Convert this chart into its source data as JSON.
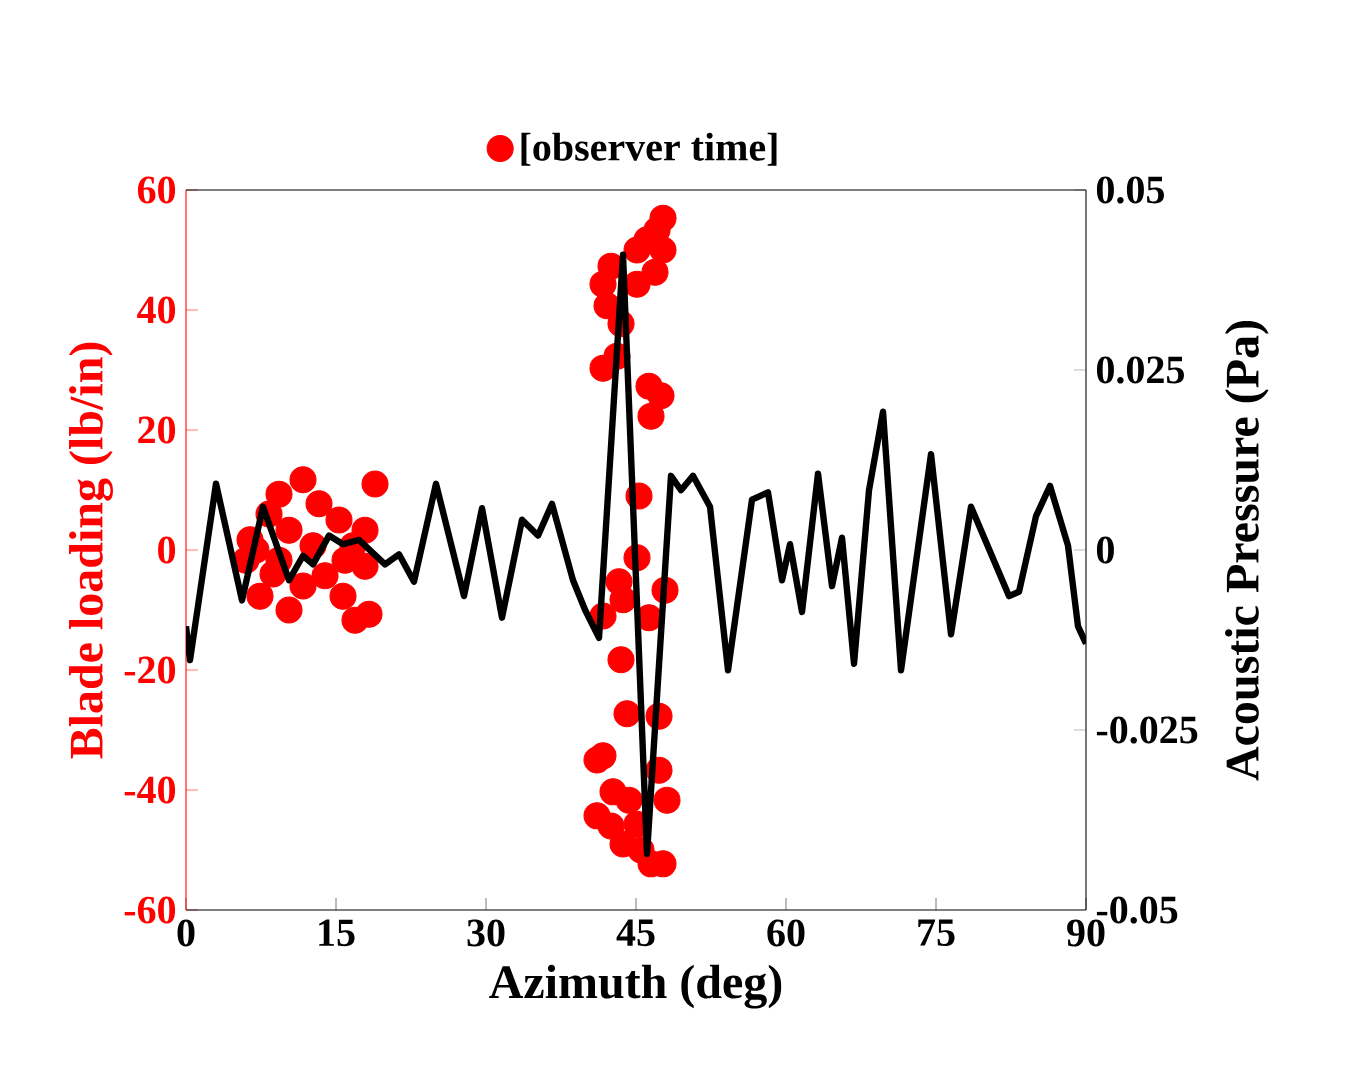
{
  "chart_data": {
    "type": "scatter",
    "xlabel": "Azimuth (deg)",
    "ylabel": "Blade loading (lb/in)",
    "y2label": "Acoustic Pressure (Pa)",
    "xlim": [
      0,
      90
    ],
    "xticks": [
      0,
      15,
      30,
      45,
      60,
      75,
      90
    ],
    "ylim": [
      -60,
      60
    ],
    "yticks": [
      -60,
      -40,
      -20,
      0,
      20,
      40,
      60
    ],
    "y2lim": [
      -0.05,
      0.05
    ],
    "y2ticks": [
      -0.05,
      -0.025,
      0,
      0.025,
      0.05
    ],
    "legend": "top",
    "grid": false,
    "series": [
      {
        "name": "[observer time]",
        "marker": "circle",
        "color": "#ff0000",
        "x": [
          18.9,
          11.7,
          9.3,
          13.3,
          6.4,
          7.4,
          10.3,
          16.9,
          18.3,
          15.7,
          15.3,
          17.9,
          17.9,
          6.0,
          8.3,
          12.7,
          13.9,
          11.7,
          9.3,
          10.3,
          15.9,
          16.7,
          7.0,
          8.7,
          47.7,
          47.1,
          46.1,
          45.1,
          47.7,
          42.5,
          41.7,
          46.9,
          45.1,
          42.1,
          43.5,
          43.1,
          41.7,
          46.3,
          47.5,
          46.5,
          45.3,
          45.1,
          47.9,
          43.3,
          43.7,
          41.7,
          46.3,
          43.5,
          44.1,
          47.3,
          41.1,
          41.7,
          47.3,
          42.7,
          44.3,
          48.1,
          41.1,
          42.5,
          45.1,
          43.7,
          45.5,
          46.5,
          47.7
        ],
        "values": [
          11,
          11.7,
          9.3,
          7.7,
          1.7,
          -7.7,
          -10,
          -11.7,
          -10.7,
          -7.7,
          5,
          3.3,
          -2.7,
          -1.7,
          6,
          0.7,
          -4.3,
          -6,
          -1.7,
          3.3,
          -1.7,
          0.7,
          0,
          -4,
          55.3,
          53.3,
          51.7,
          50,
          50,
          47.3,
          44.3,
          46.3,
          44.3,
          40.7,
          37.7,
          32.3,
          30.3,
          27.3,
          25.7,
          22.3,
          9,
          -1.3,
          -6.7,
          -5.3,
          -8.3,
          -11,
          -11.3,
          -18.3,
          -27.3,
          -27.7,
          -35,
          -34.3,
          -36.7,
          -40.3,
          -41.7,
          -41.7,
          -44.3,
          -46,
          -45.7,
          -49,
          -50,
          -52.3,
          -52.3
        ]
      },
      {
        "type": "line",
        "axis": "y2",
        "marker": "none",
        "line_style": "solid",
        "color": "#000000",
        "x": [
          0,
          0.4,
          3.0,
          5.6,
          7.7,
          10.3,
          11.7,
          12.7,
          14.3,
          15.7,
          17.3,
          19.9,
          21.3,
          22.8,
          25.0,
          27.8,
          29.6,
          31.6,
          33.6,
          35.2,
          36.6,
          38.7,
          39.9,
          41.3,
          43.7,
          46.1,
          48.5,
          49.5,
          50.7,
          52.4,
          54.2,
          56.6,
          58.2,
          59.6,
          60.4,
          61.6,
          63.2,
          64.6,
          65.6,
          66.8,
          68.3,
          69.7,
          71.5,
          74.5,
          76.5,
          78.5,
          82.3,
          83.3,
          85.0,
          86.4,
          88.2,
          89.2,
          90
        ],
        "values": [
          -0.0106,
          -0.0153,
          0.0092,
          -0.007,
          0.006,
          -0.0042,
          -0.0008,
          -0.002,
          0.002,
          0.0008,
          0.0014,
          -0.002,
          -0.0006,
          -0.0044,
          0.0092,
          -0.0064,
          0.0058,
          -0.0094,
          0.0042,
          0.002,
          0.0064,
          -0.0042,
          -0.0083,
          -0.0122,
          0.041,
          -0.0422,
          0.0103,
          0.0083,
          0.0103,
          0.006,
          -0.0167,
          0.007,
          0.008,
          -0.0042,
          0.0008,
          -0.0086,
          0.0106,
          -0.005,
          0.0017,
          -0.0158,
          0.0083,
          0.0192,
          -0.0167,
          0.0133,
          -0.0117,
          0.006,
          -0.0064,
          -0.0058,
          0.0047,
          0.0089,
          0.0006,
          -0.0106,
          -0.013
        ]
      }
    ]
  }
}
